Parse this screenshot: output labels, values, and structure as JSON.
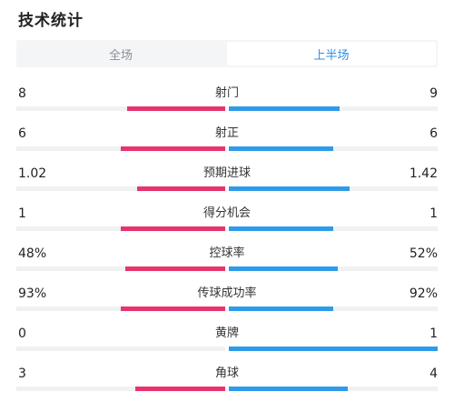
{
  "title": "技术统计",
  "tabs": [
    {
      "label": "全场",
      "active": false
    },
    {
      "label": "上半场",
      "active": true
    }
  ],
  "colors": {
    "home": "#e8336d",
    "away": "#2f9be8",
    "active_tab": "#2f8fe8"
  },
  "stats": [
    {
      "label": "射门",
      "home": "8",
      "away": "9",
      "home_share": 0.47,
      "away_share": 0.53
    },
    {
      "label": "射正",
      "home": "6",
      "away": "6",
      "home_share": 0.5,
      "away_share": 0.5
    },
    {
      "label": "预期进球",
      "home": "1.02",
      "away": "1.42",
      "home_share": 0.42,
      "away_share": 0.58
    },
    {
      "label": "得分机会",
      "home": "1",
      "away": "1",
      "home_share": 0.5,
      "away_share": 0.5
    },
    {
      "label": "控球率",
      "home": "48%",
      "away": "52%",
      "home_share": 0.48,
      "away_share": 0.52
    },
    {
      "label": "传球成功率",
      "home": "93%",
      "away": "92%",
      "home_share": 0.5,
      "away_share": 0.5
    },
    {
      "label": "黄牌",
      "home": "0",
      "away": "1",
      "home_share": 0,
      "away_share": 1
    },
    {
      "label": "角球",
      "home": "3",
      "away": "4",
      "home_share": 0.43,
      "away_share": 0.57
    }
  ]
}
